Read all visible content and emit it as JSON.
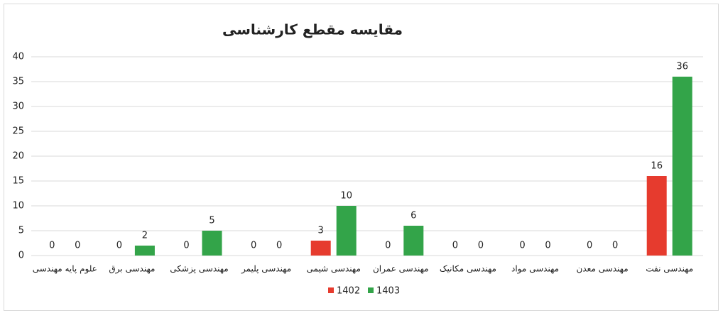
{
  "chart_data": {
    "type": "bar",
    "title": "مقایسه مقطع کارشناسی",
    "categories": [
      "علوم پایه مهندسی",
      "مهندسی برق",
      "مهندسی پزشکی",
      "مهندسی پلیمر",
      "مهندسی شیمی",
      "مهندسی عمران",
      "مهندسی مکانیک",
      "مهندسی مواد",
      "مهندسی معدن",
      "مهندسی نفت"
    ],
    "series": [
      {
        "name": "1402",
        "color": "#e63b2e",
        "values": [
          0,
          0,
          0,
          0,
          3,
          0,
          0,
          0,
          0,
          16
        ]
      },
      {
        "name": "1403",
        "color": "#33a449",
        "values": [
          0,
          2,
          5,
          0,
          10,
          6,
          0,
          0,
          0,
          36
        ]
      }
    ],
    "ylim": [
      0,
      40
    ],
    "yticks": [
      0,
      5,
      10,
      15,
      20,
      25,
      30,
      35,
      40
    ],
    "grid": true,
    "legend": "bottom"
  }
}
